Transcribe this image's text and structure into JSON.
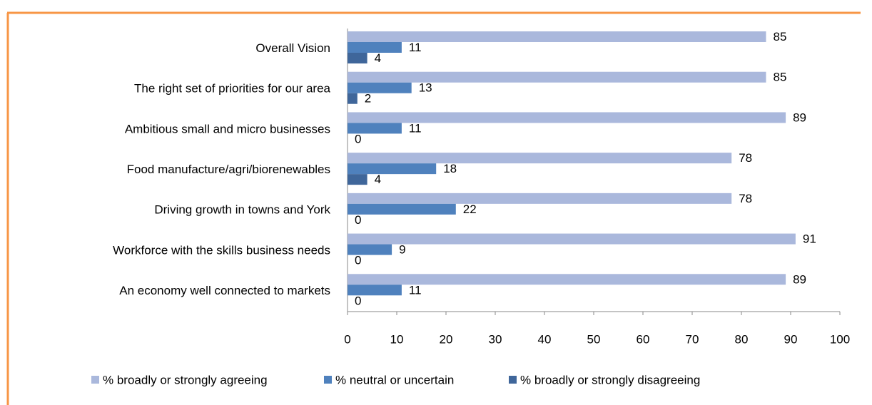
{
  "chart_data": {
    "type": "bar",
    "orientation": "horizontal",
    "categories": [
      "Overall Vision",
      "The right set of priorities for our area",
      "Ambitious small and micro businesses",
      "Food manufacture/agri/biorenewables",
      "Driving growth in towns and York",
      "Workforce with the skills business needs",
      "An economy well connected to markets"
    ],
    "series": [
      {
        "name": "% broadly or strongly agreeing",
        "color": "#aab8dc",
        "values": [
          85,
          85,
          89,
          78,
          78,
          91,
          89
        ]
      },
      {
        "name": "% neutral or uncertain",
        "color": "#4f81bd",
        "values": [
          11,
          13,
          11,
          18,
          22,
          9,
          11
        ]
      },
      {
        "name": "% broadly or strongly disagreeing",
        "color": "#3f669a",
        "values": [
          4,
          2,
          0,
          4,
          0,
          0,
          0
        ]
      }
    ],
    "xlim": [
      0,
      100
    ],
    "xticks": [
      0,
      10,
      20,
      30,
      40,
      50,
      60,
      70,
      80,
      90,
      100
    ],
    "legend": "bottom",
    "data_labels": true
  }
}
